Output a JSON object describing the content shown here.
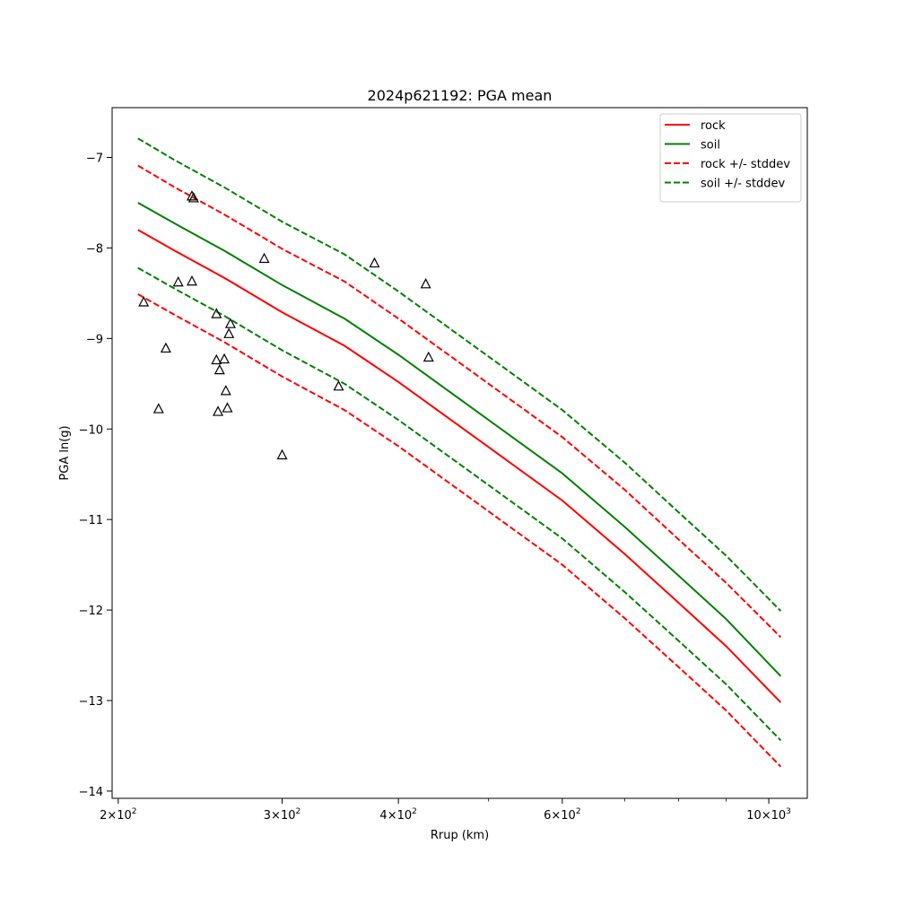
{
  "colors": {
    "rock": "#ff0000",
    "soil": "#008000",
    "marker": "#000000"
  },
  "chart_data": {
    "type": "line",
    "title": "2024p621192: PGA mean",
    "xlabel": "Rrup (km)",
    "ylabel": "PGA ln(g)",
    "xscale": "log",
    "xlim": [
      197,
      1100
    ],
    "ylim": [
      -14.08,
      -6.45
    ],
    "x_ticks": [
      {
        "value": 200,
        "base": "2",
        "exp": "2"
      },
      {
        "value": 300,
        "base": "3",
        "exp": "2"
      },
      {
        "value": 400,
        "base": "4",
        "exp": "2"
      },
      {
        "value": 600,
        "base": "6",
        "exp": "2"
      },
      {
        "value": 1000,
        "base": "10",
        "exp": "3"
      }
    ],
    "x_tick_multiplier": "×10",
    "x_minor_ticks": [
      500,
      700,
      800,
      900
    ],
    "y_ticks": [
      {
        "value": -7,
        "label": "−7"
      },
      {
        "value": -8,
        "label": "−8"
      },
      {
        "value": -9,
        "label": "−9"
      },
      {
        "value": -10,
        "label": "−10"
      },
      {
        "value": -11,
        "label": "−11"
      },
      {
        "value": -12,
        "label": "−12"
      },
      {
        "value": -13,
        "label": "−13"
      },
      {
        "value": -14,
        "label": "−14"
      }
    ],
    "grid": false,
    "legend_position": "top-right",
    "x": [
      210,
      230,
      260,
      300,
      350,
      400,
      500,
      600,
      700,
      800,
      900,
      1030
    ],
    "series": [
      {
        "name": "rock",
        "style": "solid",
        "color_key": "rock",
        "values": [
          -7.8,
          -8.03,
          -8.33,
          -8.71,
          -9.08,
          -9.48,
          -10.2,
          -10.79,
          -11.38,
          -11.92,
          -12.4,
          -13.02
        ]
      },
      {
        "name": "soil",
        "style": "solid",
        "color_key": "soil",
        "values": [
          -7.5,
          -7.73,
          -8.03,
          -8.41,
          -8.78,
          -9.18,
          -9.9,
          -10.49,
          -11.08,
          -11.62,
          -12.1,
          -12.73
        ]
      },
      {
        "name": "rock +/- stddev",
        "style": "dashed",
        "color_key": "rock",
        "values": [
          -7.09,
          -7.33,
          -7.63,
          -8.01,
          -8.37,
          -8.78,
          -9.5,
          -10.09,
          -10.67,
          -11.22,
          -11.7,
          -12.3
        ]
      },
      {
        "name": "",
        "legend": false,
        "style": "dashed",
        "color_key": "rock",
        "values": [
          -8.51,
          -8.74,
          -9.04,
          -9.42,
          -9.79,
          -10.19,
          -10.91,
          -11.5,
          -12.09,
          -12.63,
          -13.11,
          -13.73
        ]
      },
      {
        "name": "soil +/- stddev",
        "style": "dashed",
        "color_key": "soil",
        "values": [
          -6.79,
          -7.03,
          -7.33,
          -7.71,
          -8.07,
          -8.48,
          -9.2,
          -9.79,
          -10.37,
          -10.92,
          -11.4,
          -12.01
        ]
      },
      {
        "name": "",
        "legend": false,
        "style": "dashed",
        "color_key": "soil",
        "values": [
          -8.22,
          -8.45,
          -8.75,
          -9.13,
          -9.5,
          -9.9,
          -10.62,
          -11.21,
          -11.8,
          -12.34,
          -12.82,
          -13.44
        ]
      }
    ],
    "observations": [
      [
        213,
        -8.6
      ],
      [
        221,
        -9.78
      ],
      [
        225,
        -9.11
      ],
      [
        232,
        -8.38
      ],
      [
        240,
        -7.43
      ],
      [
        240,
        -8.37
      ],
      [
        241,
        -7.45
      ],
      [
        255,
        -8.73
      ],
      [
        255,
        -9.24
      ],
      [
        256,
        -9.81
      ],
      [
        257,
        -9.35
      ],
      [
        260,
        -9.23
      ],
      [
        261,
        -9.58
      ],
      [
        262,
        -9.77
      ],
      [
        263,
        -8.95
      ],
      [
        264,
        -8.84
      ],
      [
        287,
        -8.12
      ],
      [
        300,
        -10.29
      ],
      [
        345,
        -9.53
      ],
      [
        377,
        -8.17
      ],
      [
        428,
        -8.4
      ],
      [
        431,
        -9.21
      ]
    ]
  }
}
